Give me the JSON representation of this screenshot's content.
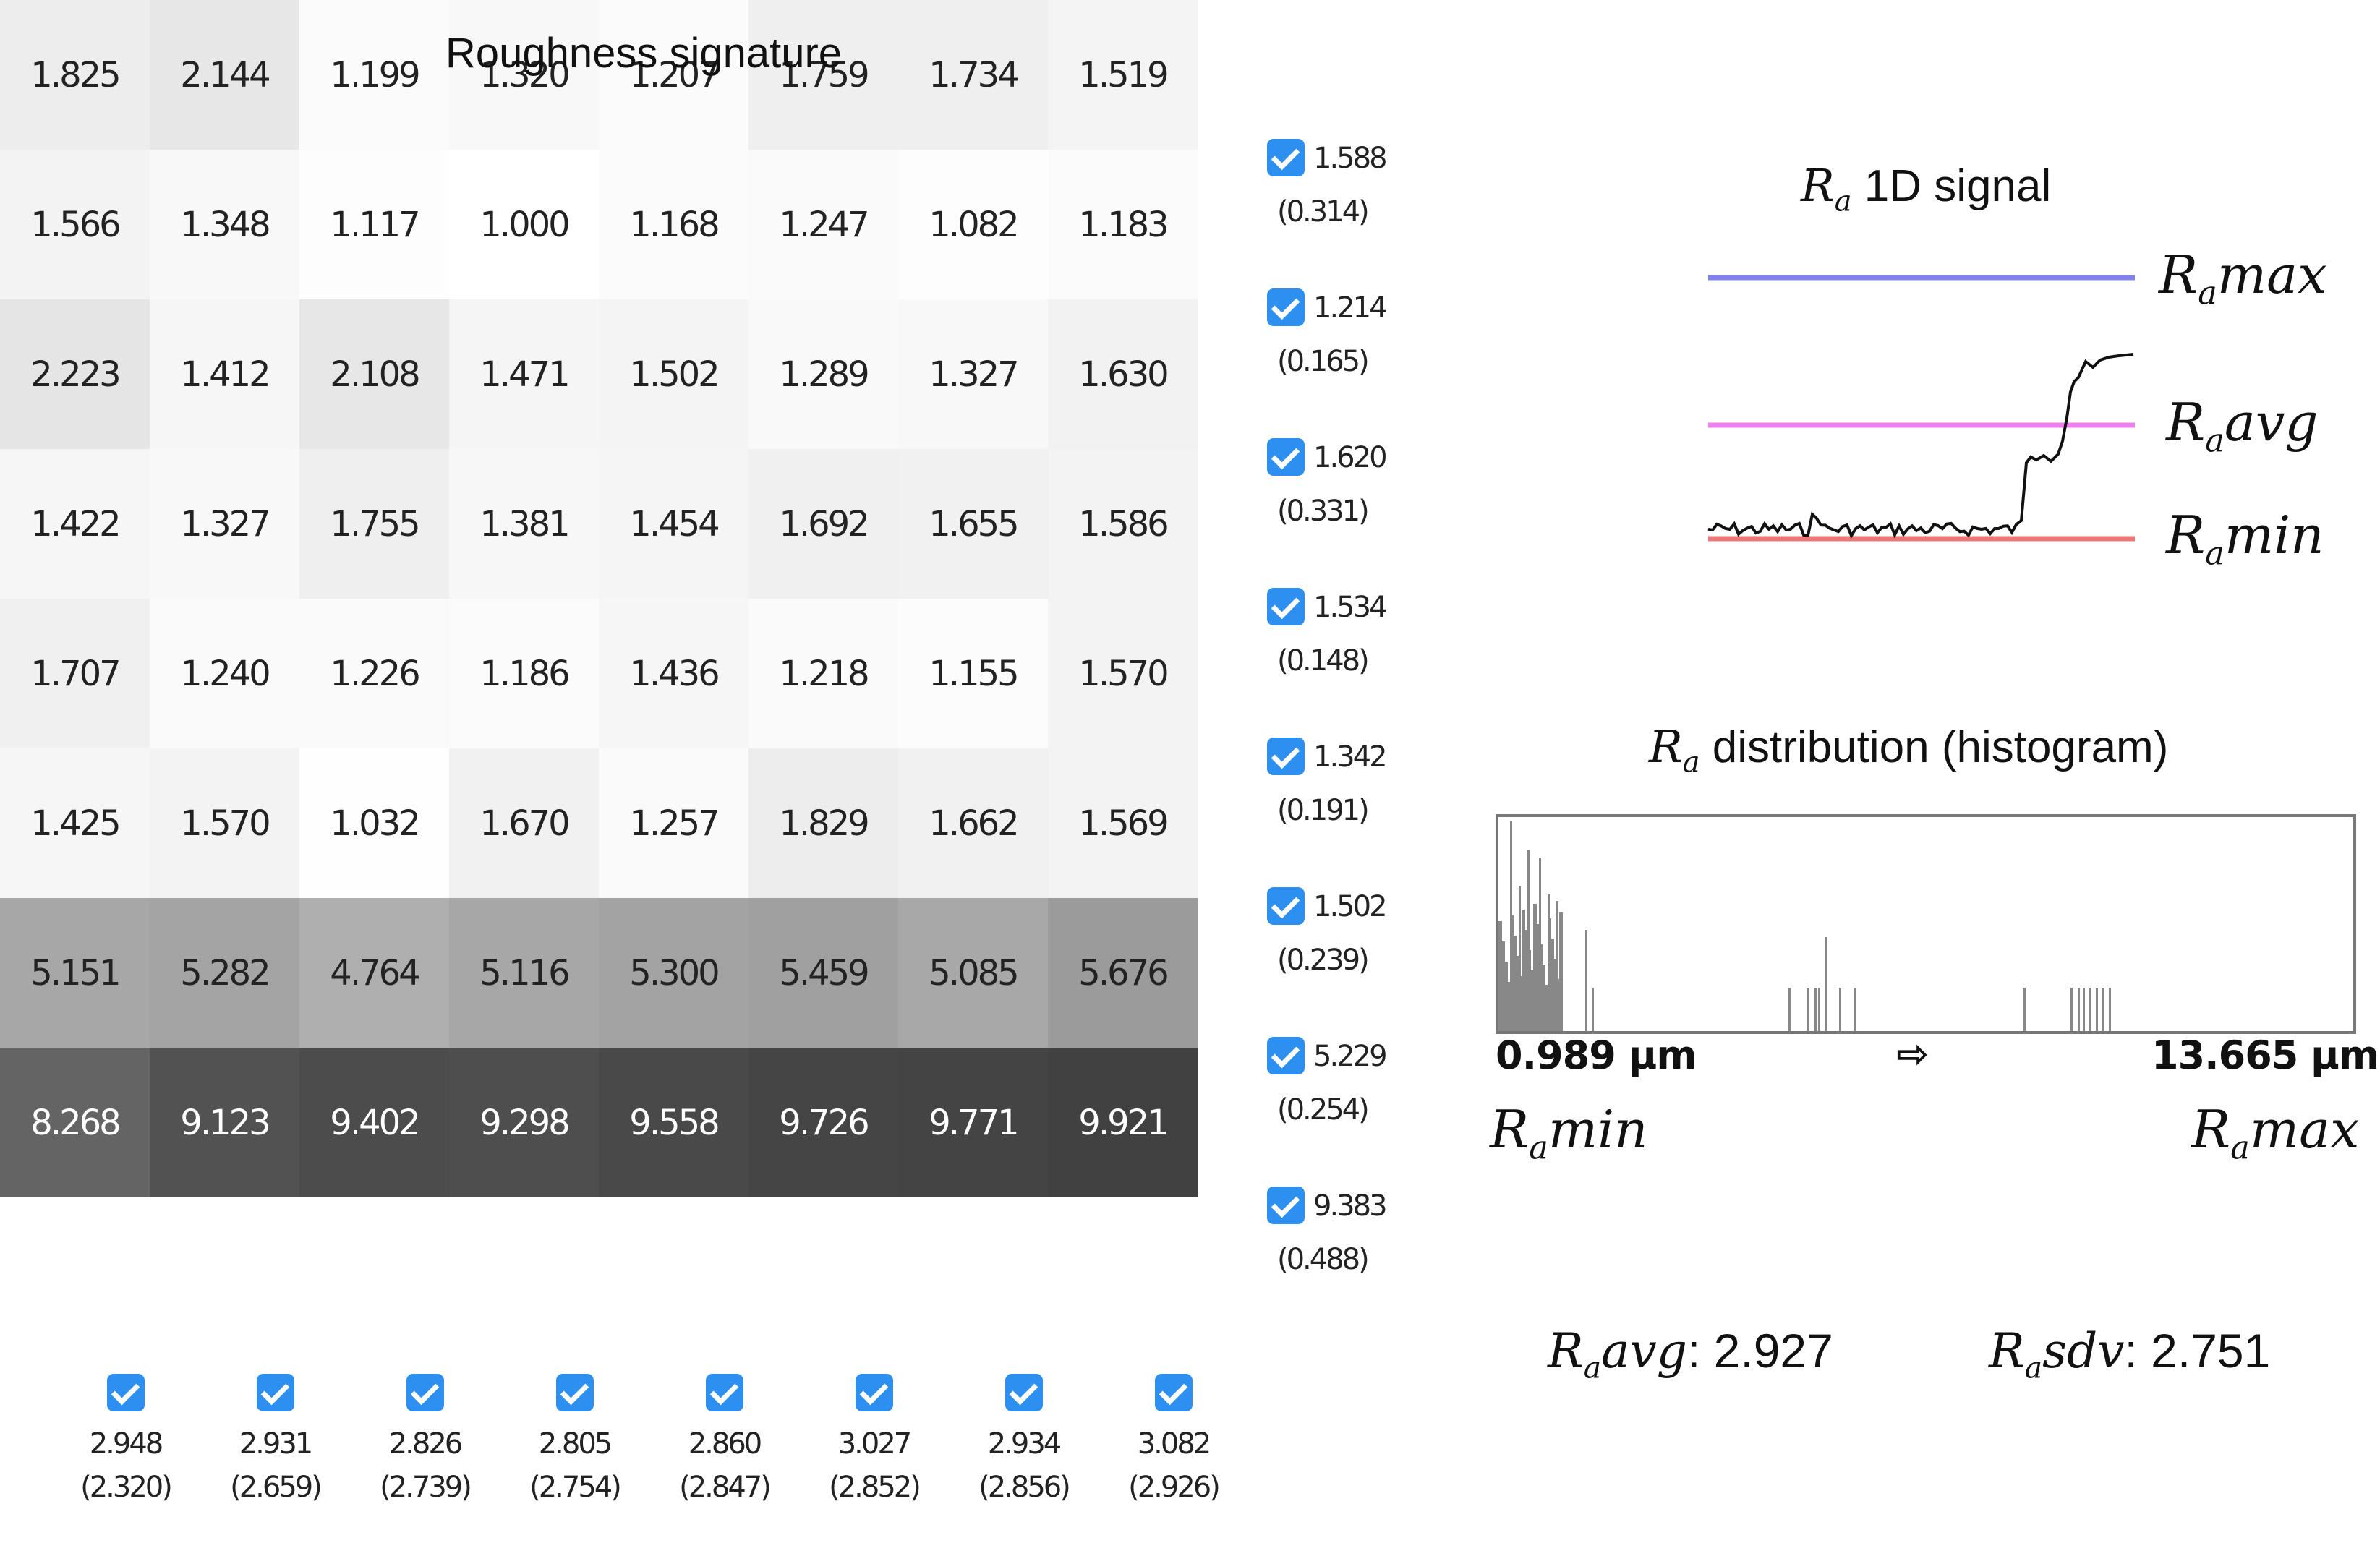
{
  "signature": {
    "title": "Roughness signature",
    "grid": [
      [
        "1.825",
        "2.144",
        "1.199",
        "1.320",
        "1.207",
        "1.759",
        "1.734",
        "1.519"
      ],
      [
        "1.566",
        "1.348",
        "1.117",
        "1.000",
        "1.168",
        "1.247",
        "1.082",
        "1.183"
      ],
      [
        "2.223",
        "1.412",
        "2.108",
        "1.471",
        "1.502",
        "1.289",
        "1.327",
        "1.630"
      ],
      [
        "1.422",
        "1.327",
        "1.755",
        "1.381",
        "1.454",
        "1.692",
        "1.655",
        "1.586"
      ],
      [
        "1.707",
        "1.240",
        "1.226",
        "1.186",
        "1.436",
        "1.218",
        "1.155",
        "1.570"
      ],
      [
        "1.425",
        "1.570",
        "1.032",
        "1.670",
        "1.257",
        "1.829",
        "1.662",
        "1.569"
      ],
      [
        "5.151",
        "5.282",
        "4.764",
        "5.116",
        "5.300",
        "5.459",
        "5.085",
        "5.676"
      ],
      [
        "8.268",
        "9.123",
        "9.402",
        "9.298",
        "9.558",
        "9.726",
        "9.771",
        "9.921"
      ]
    ],
    "rows": [
      {
        "avg": "1.588",
        "sdv": "(0.314)"
      },
      {
        "avg": "1.214",
        "sdv": "(0.165)"
      },
      {
        "avg": "1.620",
        "sdv": "(0.331)"
      },
      {
        "avg": "1.534",
        "sdv": "(0.148)"
      },
      {
        "avg": "1.342",
        "sdv": "(0.191)"
      },
      {
        "avg": "1.502",
        "sdv": "(0.239)"
      },
      {
        "avg": "5.229",
        "sdv": "(0.254)"
      },
      {
        "avg": "9.383",
        "sdv": "(0.488)"
      }
    ],
    "cols": [
      {
        "avg": "2.948",
        "sdv": "(2.320)"
      },
      {
        "avg": "2.931",
        "sdv": "(2.659)"
      },
      {
        "avg": "2.826",
        "sdv": "(2.739)"
      },
      {
        "avg": "2.805",
        "sdv": "(2.754)"
      },
      {
        "avg": "2.860",
        "sdv": "(2.847)"
      },
      {
        "avg": "3.027",
        "sdv": "(2.852)"
      },
      {
        "avg": "2.934",
        "sdv": "(2.856)"
      },
      {
        "avg": "3.082",
        "sdv": "(2.926)"
      }
    ],
    "checkbox_color": "#2d8ff0"
  },
  "signal": {
    "title_symbol": "R",
    "title_sub": "a",
    "title_text": " 1D signal",
    "max_label_sub": "a",
    "max_label_text": "max",
    "avg_label_sub": "a",
    "avg_label_text": "avg",
    "min_label_sub": "a",
    "min_label_text": "min",
    "max_color": "#8080ee",
    "avg_color": "#ee80ee",
    "min_color": "#ee7777"
  },
  "histogram": {
    "title_symbol": "R",
    "title_sub": "a",
    "title_text": " distribution (histogram)",
    "min_value": "0.989 µm",
    "max_value": "13.665 µm",
    "arrow": "⇨",
    "min_label_sub": "a",
    "min_label_text": "min",
    "max_label_sub": "a",
    "max_label_text": "max"
  },
  "stats": {
    "avg_sub": "a",
    "avg_name": "avg",
    "avg_value": ": 2.927",
    "sdv_sub": "a",
    "sdv_name": "sdv",
    "sdv_value": ": 2.751"
  }
}
